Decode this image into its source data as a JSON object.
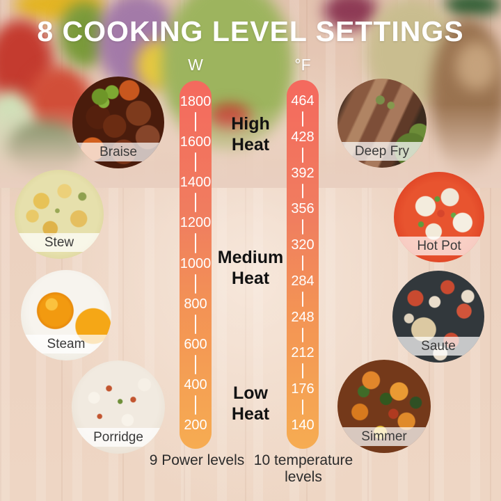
{
  "title": "8 COOKING LEVEL SETTINGS",
  "scales": {
    "power": {
      "unit": "W",
      "values": [
        "1800",
        "1600",
        "1400",
        "1200",
        "1000",
        "800",
        "600",
        "400",
        "200"
      ],
      "caption": "9 Power levels"
    },
    "temperature": {
      "unit": "°F",
      "values": [
        "464",
        "428",
        "392",
        "356",
        "320",
        "284",
        "248",
        "212",
        "176",
        "140"
      ],
      "caption": "10 temperature levels"
    }
  },
  "heat_levels": [
    {
      "label": "High Heat"
    },
    {
      "label": "Medium Heat"
    },
    {
      "label": "Low Heat"
    }
  ],
  "dishes": [
    {
      "label": "Braise"
    },
    {
      "label": "Deep Fry"
    },
    {
      "label": "Stew"
    },
    {
      "label": "Hot Pot"
    },
    {
      "label": "Steam"
    },
    {
      "label": "Saute"
    },
    {
      "label": "Porridge"
    },
    {
      "label": "Simmer"
    }
  ],
  "colors": {
    "scale_gradient_top": "#f4695e",
    "scale_gradient_bottom": "#f6ac52",
    "title_text": "#ffffff",
    "heat_text": "#121212",
    "caption_text": "#2b2b2b",
    "tick_text": "#ffffff"
  }
}
